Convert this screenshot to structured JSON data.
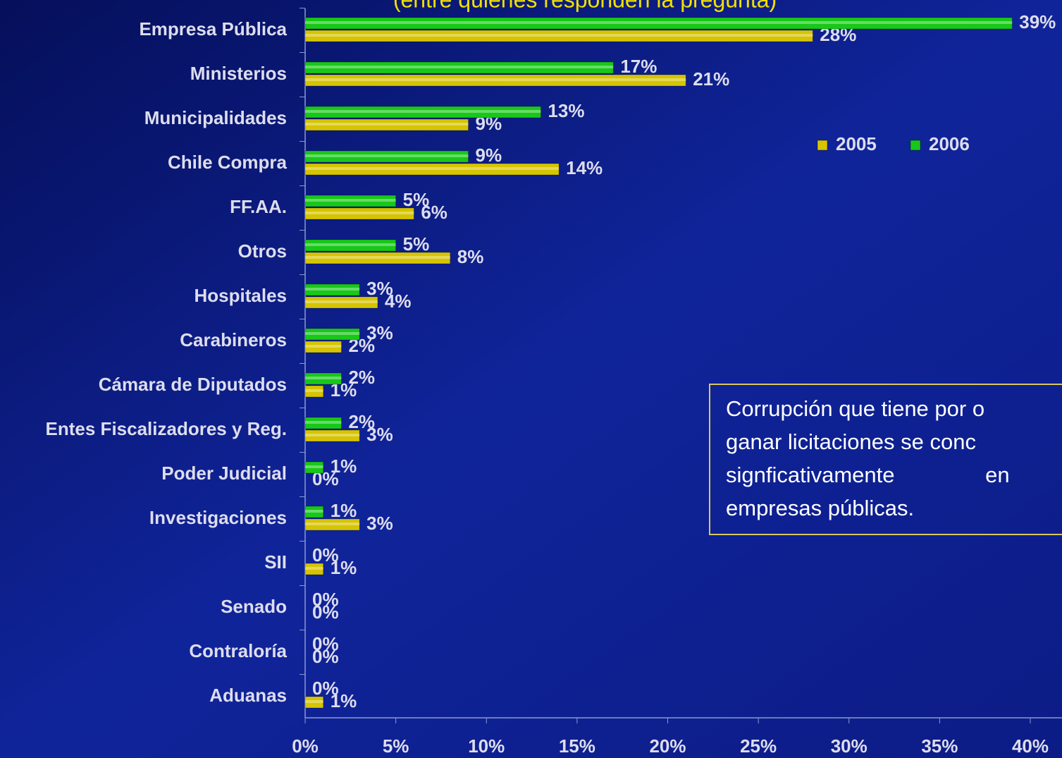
{
  "chart_data": {
    "type": "barh",
    "title": "(entre quienes responden la pregunta)",
    "categories": [
      "Empresa Pública",
      "Ministerios",
      "Municipalidades",
      "Chile Compra",
      "FF.AA.",
      "Otros",
      "Hospitales",
      "Carabineros",
      "Cámara de Diputados",
      "Entes Fiscalizadores y Reg.",
      "Poder Judicial",
      "Investigaciones",
      "SII",
      "Senado",
      "Contraloría",
      "Aduanas"
    ],
    "series": [
      {
        "name": "2005",
        "color": "#d6c400",
        "values": [
          28,
          21,
          9,
          14,
          6,
          8,
          4,
          2,
          1,
          3,
          0,
          3,
          1,
          0,
          0,
          1
        ],
        "value_labels": [
          "28%",
          "21%",
          "9%",
          "14%",
          "6%",
          "8%",
          "4%",
          "2%",
          "1%",
          "3%",
          "0%",
          "3%",
          "1%",
          "0%",
          "0%",
          "1%"
        ]
      },
      {
        "name": "2006",
        "color": "#18c818",
        "values": [
          39,
          17,
          13,
          9,
          5,
          5,
          3,
          3,
          2,
          2,
          1,
          1,
          0,
          0,
          0,
          0
        ],
        "value_labels": [
          "39%",
          "17%",
          "13%",
          "9%",
          "5%",
          "5%",
          "3%",
          "3%",
          "2%",
          "2%",
          "1%",
          "1%",
          "0%",
          "0%",
          "0%",
          "0%"
        ]
      }
    ],
    "xlim": [
      0,
      40
    ],
    "xticks": [
      {
        "value": 0,
        "label": "0%"
      },
      {
        "value": 5,
        "label": "5%"
      },
      {
        "value": 10,
        "label": "10%"
      },
      {
        "value": 15,
        "label": "15%"
      },
      {
        "value": 20,
        "label": "20%"
      },
      {
        "value": 25,
        "label": "25%"
      },
      {
        "value": 30,
        "label": "30%"
      },
      {
        "value": 35,
        "label": "35%"
      },
      {
        "value": 40,
        "label": "40%"
      }
    ],
    "legend": "upper right",
    "annotation": [
      "Corrupción que tiene por o",
      "ganar licitaciones se conc",
      "signficativamente en",
      "empresas públicas."
    ]
  }
}
